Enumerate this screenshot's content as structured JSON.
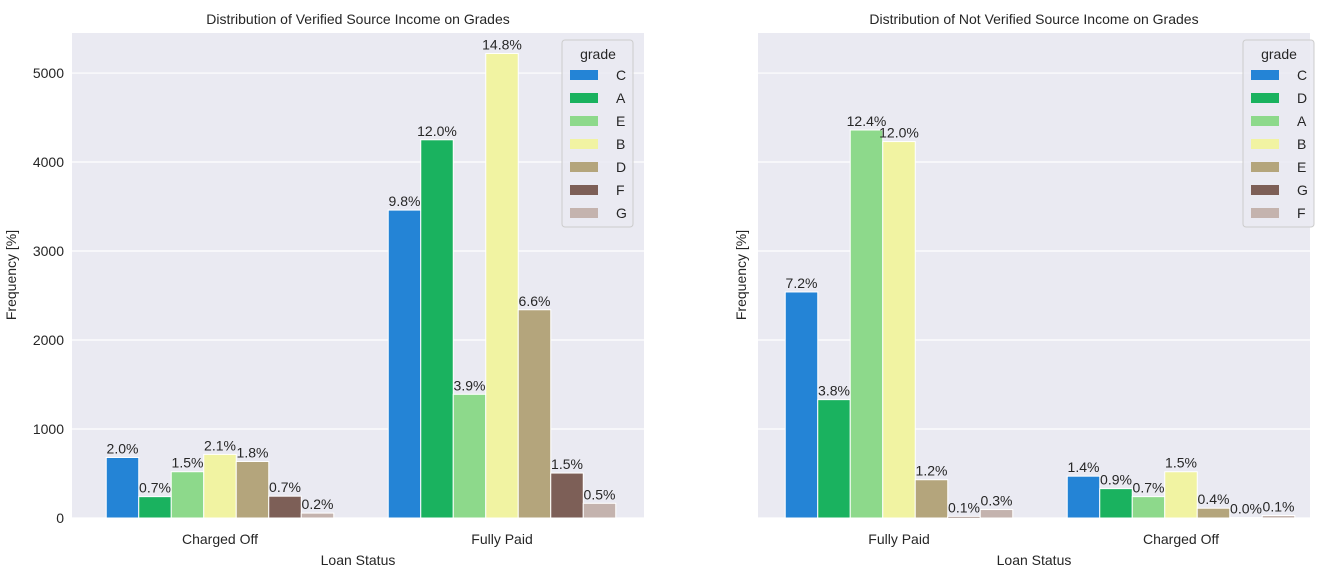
{
  "chart_data": [
    {
      "type": "bar",
      "title": "Distribution of Verified Source Income on Grades",
      "xlabel": "Loan Status",
      "ylabel": "Frequency [%]",
      "ylim": [
        0,
        5450
      ],
      "yticks": [
        0,
        1000,
        2000,
        3000,
        4000,
        5000
      ],
      "show_yticks": true,
      "grid": true,
      "legend_title": "grade",
      "legend_position": "top-right",
      "categories": [
        "Charged Off",
        "Fully Paid"
      ],
      "series": [
        {
          "name": "C",
          "color": "#2484d6",
          "values": [
            680,
            3460
          ],
          "labels": [
            "2.0%",
            "9.8%"
          ]
        },
        {
          "name": "A",
          "color": "#1ab25f",
          "values": [
            240,
            4250
          ],
          "labels": [
            "0.7%",
            "12.0%"
          ]
        },
        {
          "name": "E",
          "color": "#8dd98b",
          "values": [
            520,
            1390
          ],
          "labels": [
            "1.5%",
            "3.9%"
          ]
        },
        {
          "name": "B",
          "color": "#f1f3a2",
          "values": [
            715,
            5220
          ],
          "labels": [
            "2.1%",
            "14.8%"
          ]
        },
        {
          "name": "D",
          "color": "#b4a57c",
          "values": [
            635,
            2340
          ],
          "labels": [
            "1.8%",
            "6.6%"
          ]
        },
        {
          "name": "F",
          "color": "#7d5f57",
          "values": [
            245,
            505
          ],
          "labels": [
            "0.7%",
            "1.5%"
          ]
        },
        {
          "name": "G",
          "color": "#c4b3ae",
          "values": [
            55,
            165
          ],
          "labels": [
            "0.2%",
            "0.5%"
          ]
        }
      ]
    },
    {
      "type": "bar",
      "title": "Distribution of Not Verified Source Income on Grades",
      "xlabel": "Loan Status",
      "ylabel": "Frequency [%]",
      "ylim": [
        0,
        5450
      ],
      "yticks": [
        0,
        1000,
        2000,
        3000,
        4000,
        5000
      ],
      "show_yticks": false,
      "grid": true,
      "legend_title": "grade",
      "legend_position": "top-right",
      "categories": [
        "Fully Paid",
        "Charged Off"
      ],
      "series": [
        {
          "name": "C",
          "color": "#2484d6",
          "values": [
            2540,
            470
          ],
          "labels": [
            "7.2%",
            "1.4%"
          ]
        },
        {
          "name": "D",
          "color": "#1ab25f",
          "values": [
            1330,
            330
          ],
          "labels": [
            "3.8%",
            "0.9%"
          ]
        },
        {
          "name": "A",
          "color": "#8dd98b",
          "values": [
            4360,
            240
          ],
          "labels": [
            "12.4%",
            "0.7%"
          ]
        },
        {
          "name": "B",
          "color": "#f1f3a2",
          "values": [
            4230,
            520
          ],
          "labels": [
            "12.0%",
            "1.5%"
          ]
        },
        {
          "name": "E",
          "color": "#b4a57c",
          "values": [
            430,
            110
          ],
          "labels": [
            "1.2%",
            "0.4%"
          ]
        },
        {
          "name": "G",
          "color": "#7d5f57",
          "values": [
            18,
            4
          ],
          "labels": [
            "0.1%",
            "0.0%"
          ]
        },
        {
          "name": "F",
          "color": "#c4b3ae",
          "values": [
            95,
            28
          ],
          "labels": [
            "0.3%",
            "0.1%"
          ]
        }
      ]
    }
  ]
}
